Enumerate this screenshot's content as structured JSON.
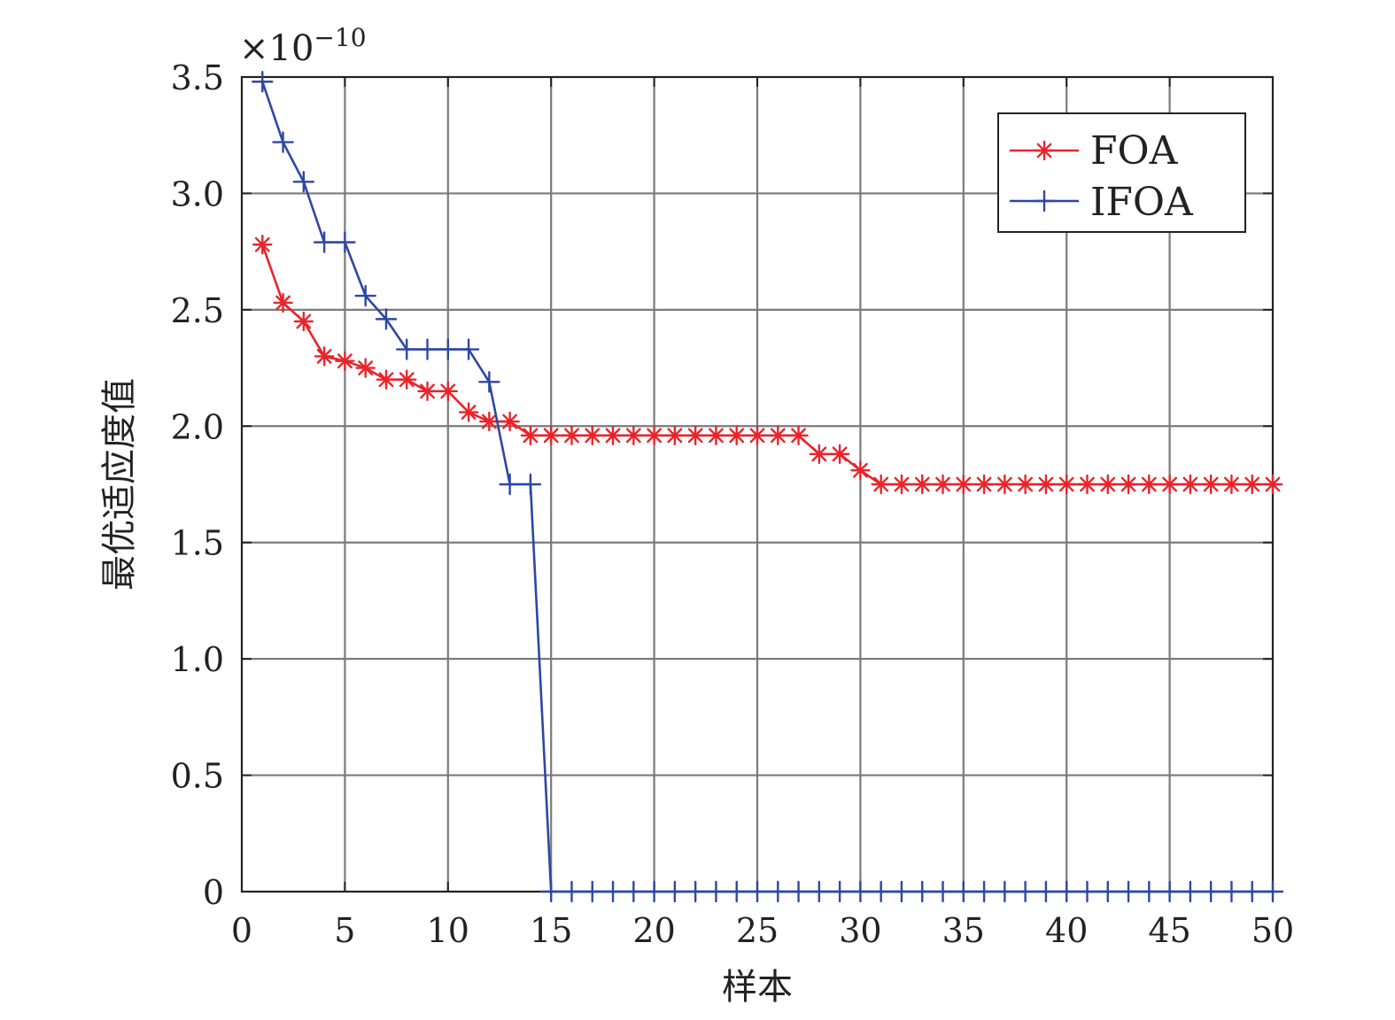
{
  "chart_data": {
    "type": "line",
    "xlabel": "样本",
    "ylabel": "最优适应度值",
    "y_exponent_prefix": "×10",
    "y_exponent_power": "−10",
    "xlim": [
      0,
      50
    ],
    "ylim": [
      0,
      3.5
    ],
    "xticks": [
      0,
      5,
      10,
      15,
      20,
      25,
      30,
      35,
      40,
      45,
      50
    ],
    "xtick_labels": [
      "0",
      "5",
      "10",
      "15",
      "20",
      "25",
      "30",
      "35",
      "40",
      "45",
      "50"
    ],
    "yticks": [
      0,
      0.5,
      1.0,
      1.5,
      2.0,
      2.5,
      3.0,
      3.5
    ],
    "ytick_labels": [
      "0",
      "0.5",
      "1.0",
      "1.5",
      "2.0",
      "2.5",
      "3.0",
      "3.5"
    ],
    "grid": true,
    "legend_position": "top-right",
    "x": [
      1,
      2,
      3,
      4,
      5,
      6,
      7,
      8,
      9,
      10,
      11,
      12,
      13,
      14,
      15,
      16,
      17,
      18,
      19,
      20,
      21,
      22,
      23,
      24,
      25,
      26,
      27,
      28,
      29,
      30,
      31,
      32,
      33,
      34,
      35,
      36,
      37,
      38,
      39,
      40,
      41,
      42,
      43,
      44,
      45,
      46,
      47,
      48,
      49,
      50
    ],
    "series": [
      {
        "name": "FOA",
        "color": "#e8242b",
        "marker": "asterisk",
        "values": [
          2.78,
          2.53,
          2.45,
          2.3,
          2.28,
          2.25,
          2.2,
          2.2,
          2.15,
          2.15,
          2.06,
          2.02,
          2.02,
          1.96,
          1.96,
          1.96,
          1.96,
          1.96,
          1.96,
          1.96,
          1.96,
          1.96,
          1.96,
          1.96,
          1.96,
          1.96,
          1.96,
          1.88,
          1.88,
          1.81,
          1.75,
          1.75,
          1.75,
          1.75,
          1.75,
          1.75,
          1.75,
          1.75,
          1.75,
          1.75,
          1.75,
          1.75,
          1.75,
          1.75,
          1.75,
          1.75,
          1.75,
          1.75,
          1.75,
          1.75
        ]
      },
      {
        "name": "IFOA",
        "color": "#2d47a3",
        "marker": "plus",
        "values": [
          3.48,
          3.22,
          3.05,
          2.79,
          2.79,
          2.56,
          2.46,
          2.33,
          2.33,
          2.33,
          2.33,
          2.19,
          1.75,
          1.75,
          0,
          0,
          0,
          0,
          0,
          0,
          0,
          0,
          0,
          0,
          0,
          0,
          0,
          0,
          0,
          0,
          0,
          0,
          0,
          0,
          0,
          0,
          0,
          0,
          0,
          0,
          0,
          0,
          0,
          0,
          0,
          0,
          0,
          0,
          0,
          0
        ]
      }
    ]
  }
}
